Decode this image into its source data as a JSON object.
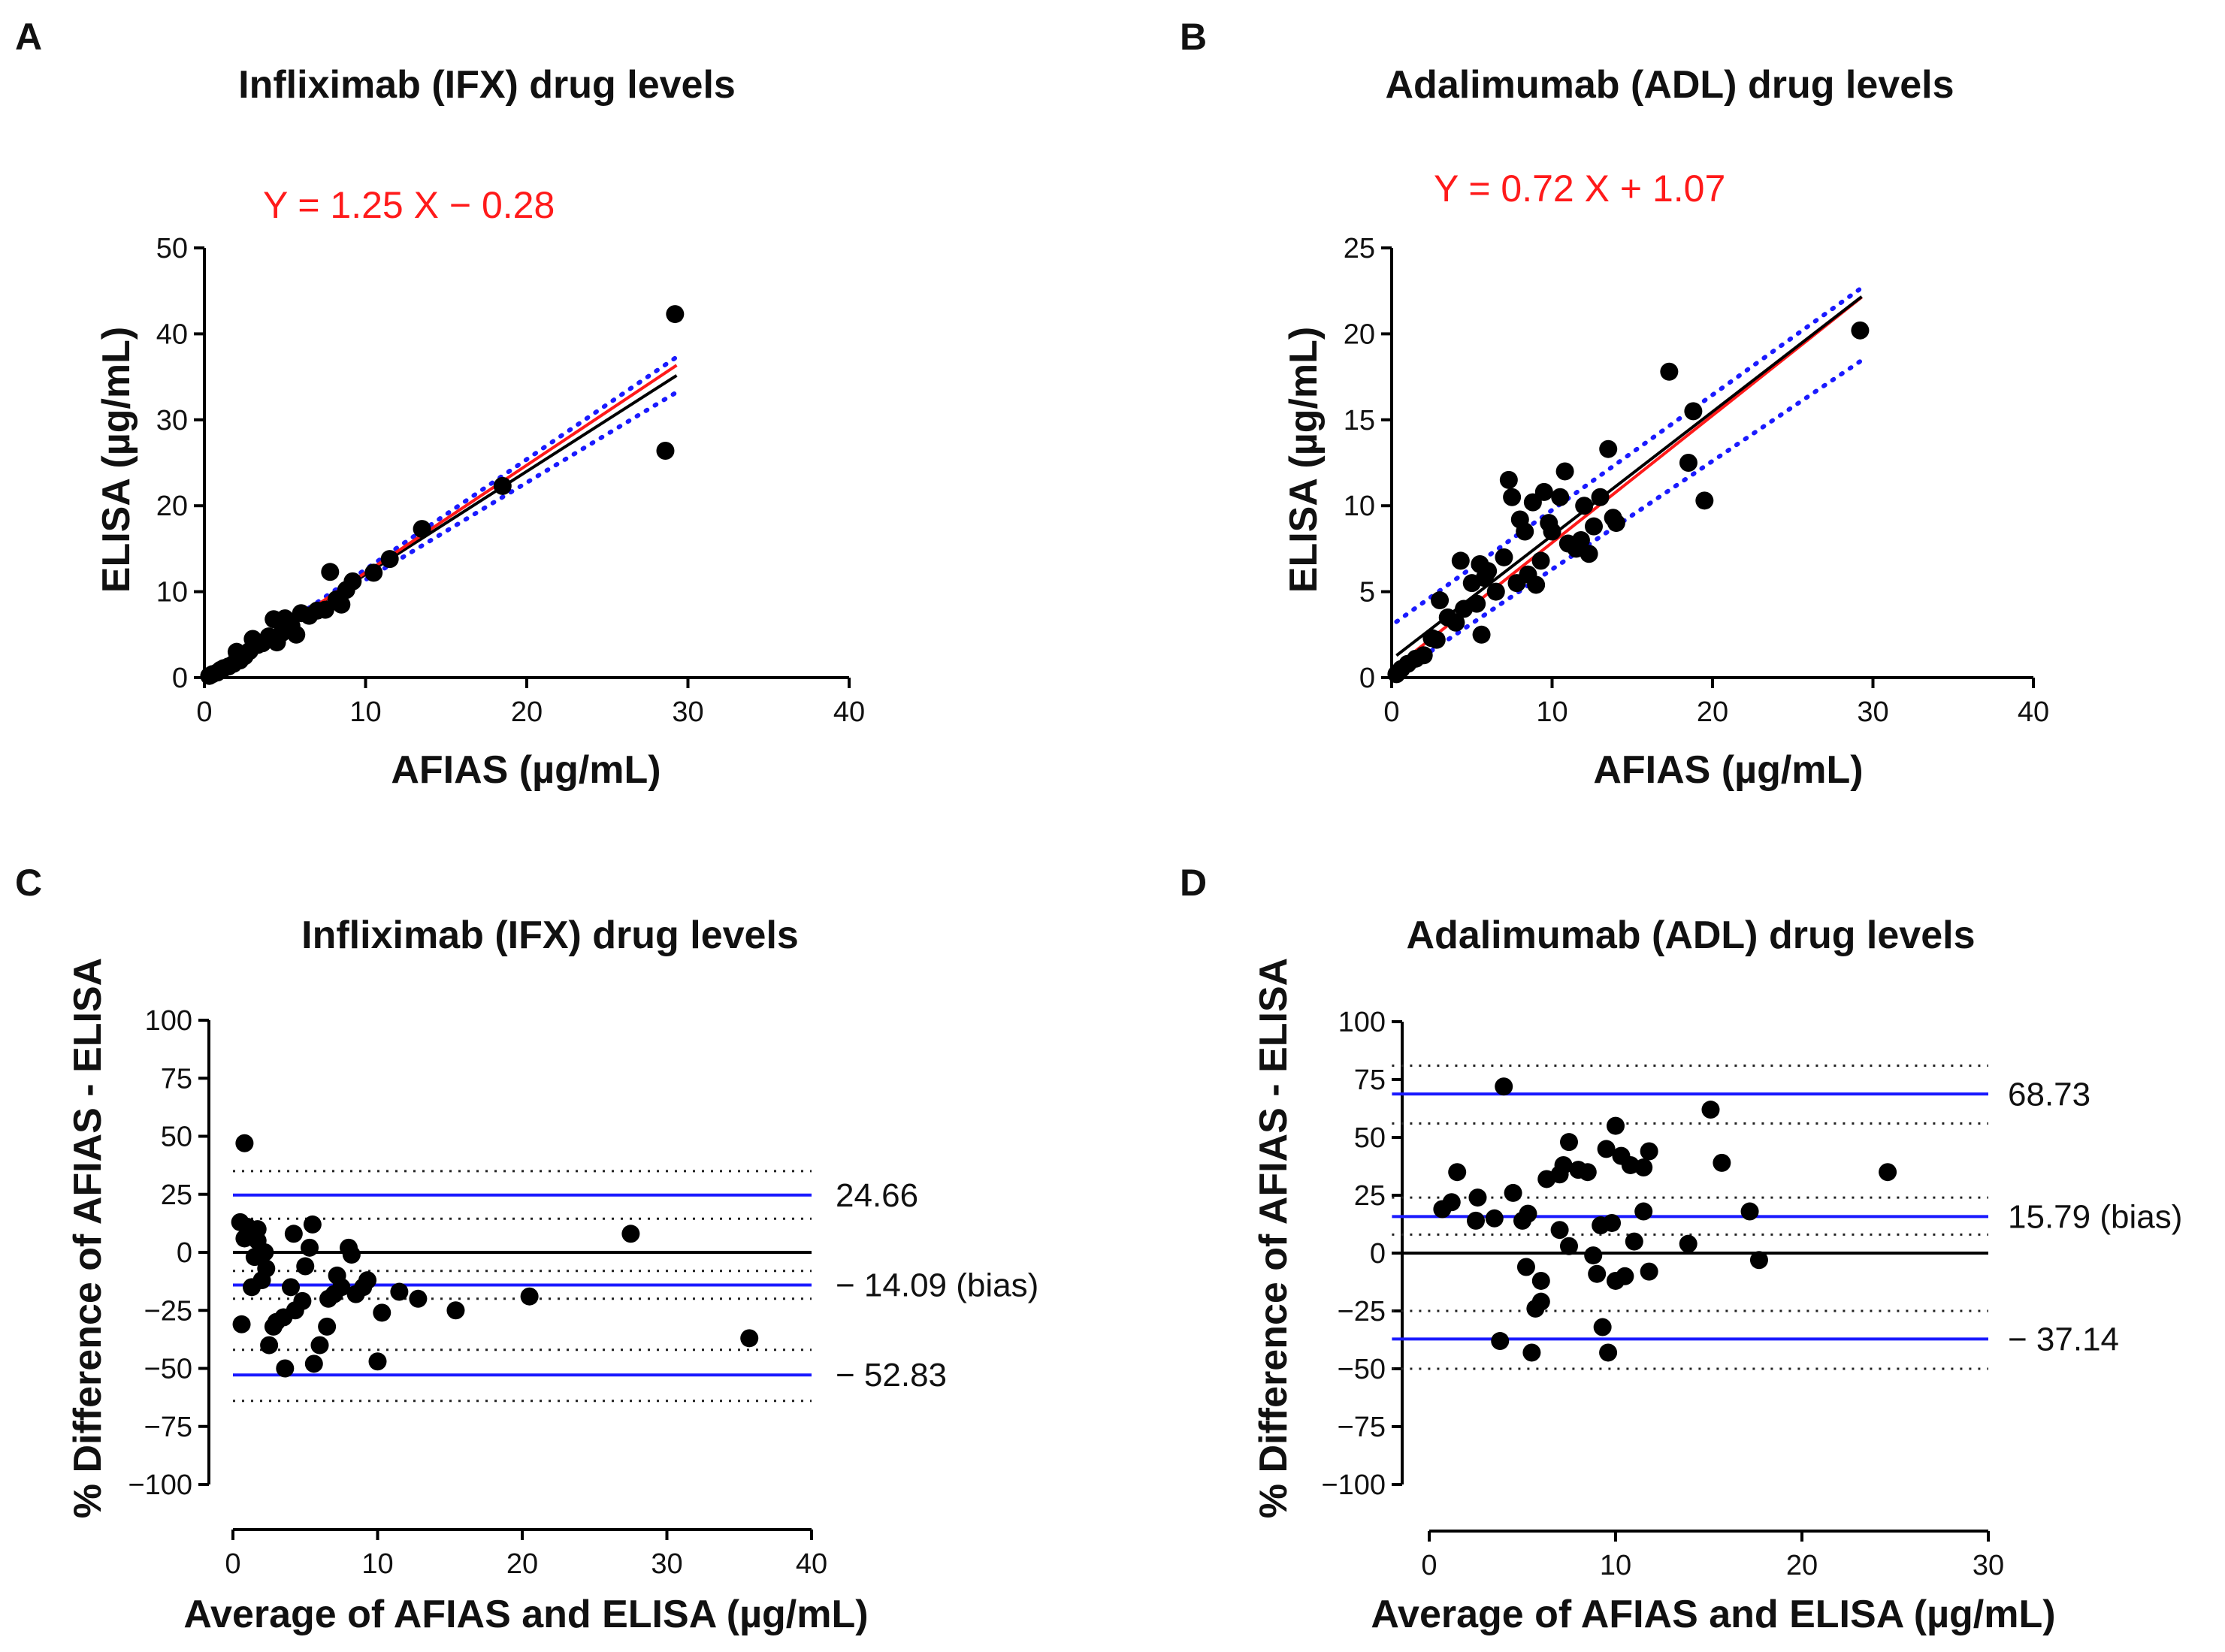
{
  "chart_data": [
    {
      "panel": "A",
      "type": "scatter",
      "title": "Infliximab (IFX) drug levels",
      "xlabel": "AFIAS (µg/mL)",
      "ylabel": "ELISA (µg/mL)",
      "xlim": [
        0,
        40
      ],
      "ylim": [
        0,
        50
      ],
      "xticks": [
        0,
        10,
        20,
        30,
        40
      ],
      "yticks": [
        0,
        10,
        20,
        30,
        40,
        50
      ],
      "equation": "Y = 1.25 X − 0.28",
      "regression_line": {
        "slope": 1.25,
        "intercept": -0.28,
        "color": "#ff1a1a"
      },
      "identity_line": {
        "slope": 1.2,
        "intercept": 0.0,
        "color": "#000000"
      },
      "confidence_band": {
        "lower": {
          "slope": 1.13,
          "intercept": 0.1
        },
        "upper": {
          "slope": 1.28,
          "intercept": -0.2
        },
        "color": "#1a1aff"
      },
      "x_range": [
        0,
        29.3
      ],
      "points": [
        [
          0.3,
          0.2
        ],
        [
          0.5,
          0.4
        ],
        [
          0.8,
          0.6
        ],
        [
          1.0,
          0.9
        ],
        [
          1.2,
          1.1
        ],
        [
          1.5,
          1.3
        ],
        [
          1.8,
          1.6
        ],
        [
          2.0,
          3.0
        ],
        [
          2.2,
          2.0
        ],
        [
          2.5,
          2.5
        ],
        [
          2.8,
          3.1
        ],
        [
          3.0,
          4.5
        ],
        [
          3.3,
          3.8
        ],
        [
          3.6,
          4.0
        ],
        [
          4.0,
          4.8
        ],
        [
          4.3,
          6.8
        ],
        [
          4.5,
          4.1
        ],
        [
          4.8,
          5.2
        ],
        [
          5.0,
          6.9
        ],
        [
          5.4,
          6.0
        ],
        [
          5.7,
          5.0
        ],
        [
          6.0,
          7.5
        ],
        [
          6.5,
          7.2
        ],
        [
          7.0,
          7.8
        ],
        [
          7.5,
          7.9
        ],
        [
          7.8,
          12.3
        ],
        [
          8.2,
          9.1
        ],
        [
          8.5,
          8.5
        ],
        [
          8.8,
          10.2
        ],
        [
          9.2,
          11.2
        ],
        [
          10.5,
          12.2
        ],
        [
          11.5,
          13.8
        ],
        [
          13.5,
          17.3
        ],
        [
          18.5,
          22.3
        ],
        [
          28.6,
          26.4
        ],
        [
          29.2,
          42.3
        ]
      ]
    },
    {
      "panel": "B",
      "type": "scatter",
      "title": "Adalimumab (ADL) drug levels",
      "xlabel": "AFIAS (µg/mL)",
      "ylabel": "ELISA (µg/mL)",
      "xlim": [
        0,
        40
      ],
      "ylim": [
        0,
        25
      ],
      "xticks": [
        0,
        10,
        20,
        30,
        40
      ],
      "yticks": [
        0,
        5,
        10,
        15,
        20,
        25
      ],
      "equation": "Y = 0.72 X + 1.07",
      "regression_line": {
        "slope": 0.72,
        "intercept": 1.07,
        "color": "#000000"
      },
      "identity_line": {
        "slope": 0.74,
        "intercept": 0.45,
        "color": "#ff1a1a"
      },
      "confidence_band": {
        "lower": {
          "slope": 0.63,
          "intercept": 0.0,
          "color": "#1a1aff"
        },
        "upper": {
          "slope": 0.67,
          "intercept": 3.05
        },
        "color": "#1a1aff"
      },
      "x_range": [
        0.3,
        29.3
      ],
      "points": [
        [
          0.3,
          0.2
        ],
        [
          0.6,
          0.5
        ],
        [
          1.0,
          0.8
        ],
        [
          1.5,
          1.1
        ],
        [
          2.0,
          1.3
        ],
        [
          2.5,
          2.3
        ],
        [
          2.8,
          2.2
        ],
        [
          3.0,
          4.5
        ],
        [
          3.5,
          3.5
        ],
        [
          4.0,
          3.2
        ],
        [
          4.3,
          6.8
        ],
        [
          4.5,
          4.0
        ],
        [
          5.0,
          5.5
        ],
        [
          5.3,
          4.3
        ],
        [
          5.5,
          6.6
        ],
        [
          5.8,
          5.8
        ],
        [
          5.6,
          2.5
        ],
        [
          6.0,
          6.2
        ],
        [
          6.5,
          5.0
        ],
        [
          7.0,
          7.0
        ],
        [
          7.3,
          11.5
        ],
        [
          7.5,
          10.5
        ],
        [
          7.8,
          5.5
        ],
        [
          8.0,
          9.2
        ],
        [
          8.3,
          8.5
        ],
        [
          8.5,
          6.0
        ],
        [
          8.8,
          10.2
        ],
        [
          9.0,
          5.4
        ],
        [
          9.3,
          6.8
        ],
        [
          9.5,
          10.8
        ],
        [
          9.8,
          9.0
        ],
        [
          10.0,
          8.5
        ],
        [
          10.5,
          10.5
        ],
        [
          10.8,
          12.0
        ],
        [
          11.0,
          7.8
        ],
        [
          11.5,
          7.5
        ],
        [
          11.8,
          8.0
        ],
        [
          12.0,
          10.0
        ],
        [
          12.3,
          7.2
        ],
        [
          12.6,
          8.8
        ],
        [
          13.0,
          10.5
        ],
        [
          13.5,
          13.3
        ],
        [
          13.8,
          9.3
        ],
        [
          14.0,
          9.0
        ],
        [
          17.3,
          17.8
        ],
        [
          18.5,
          12.5
        ],
        [
          18.8,
          15.5
        ],
        [
          19.5,
          10.3
        ],
        [
          29.2,
          20.2
        ]
      ]
    },
    {
      "panel": "C",
      "type": "scatter",
      "title": "Infliximab (IFX) drug levels",
      "xlabel": "Average of AFIAS and ELISA (µg/mL)",
      "ylabel": "% Difference of AFIAS - ELISA",
      "xlim": [
        0,
        40
      ],
      "ylim": [
        -100,
        100
      ],
      "xticks": [
        0,
        10,
        20,
        30,
        40
      ],
      "yticks": [
        -100,
        -75,
        -50,
        -25,
        0,
        25,
        50,
        75,
        100
      ],
      "ytick_labels": [
        "−100",
        "−75",
        "−50",
        "−25",
        "0",
        "25",
        "50",
        "75",
        "100"
      ],
      "zero_line": 0,
      "limit_lines": [
        {
          "y": 24.66,
          "label": "24.66",
          "color": "#1a1aff"
        },
        {
          "y": -14.09,
          "label": "− 14.09 (bias)",
          "color": "#1a1aff"
        },
        {
          "y": -52.83,
          "label": "− 52.83",
          "color": "#1a1aff"
        }
      ],
      "ci_lines": [
        35,
        14.5,
        -8,
        -20,
        -42,
        -64
      ],
      "line_x_range": [
        0,
        40
      ],
      "points": [
        [
          0.6,
          -31
        ],
        [
          0.8,
          47
        ],
        [
          0.5,
          13
        ],
        [
          1.0,
          11
        ],
        [
          0.8,
          6
        ],
        [
          1.3,
          -15
        ],
        [
          1.5,
          -2
        ],
        [
          1.7,
          10
        ],
        [
          1.7,
          5
        ],
        [
          2.0,
          -12
        ],
        [
          2.2,
          0
        ],
        [
          2.3,
          -7
        ],
        [
          2.5,
          -40
        ],
        [
          2.8,
          -32
        ],
        [
          3.0,
          -30
        ],
        [
          3.5,
          -28
        ],
        [
          3.6,
          -50
        ],
        [
          4.0,
          -15
        ],
        [
          4.2,
          8
        ],
        [
          4.3,
          -25
        ],
        [
          4.8,
          -21
        ],
        [
          5.0,
          -6
        ],
        [
          5.3,
          2
        ],
        [
          5.5,
          12
        ],
        [
          5.6,
          -48
        ],
        [
          6.0,
          -40
        ],
        [
          6.5,
          -32
        ],
        [
          6.6,
          -20
        ],
        [
          7.0,
          -18
        ],
        [
          7.2,
          -10
        ],
        [
          7.5,
          -15
        ],
        [
          8.0,
          2
        ],
        [
          8.2,
          -1
        ],
        [
          8.5,
          -18
        ],
        [
          9.0,
          -15
        ],
        [
          9.3,
          -12
        ],
        [
          10.0,
          -47
        ],
        [
          10.3,
          -26
        ],
        [
          11.5,
          -17
        ],
        [
          12.8,
          -20
        ],
        [
          15.4,
          -25
        ],
        [
          20.5,
          -19
        ],
        [
          27.5,
          8
        ],
        [
          35.7,
          -37
        ]
      ]
    },
    {
      "panel": "D",
      "type": "scatter",
      "title": "Adalimumab (ADL) drug levels",
      "xlabel": "Average of AFIAS and ELISA (µg/mL)",
      "ylabel": "% Difference of AFIAS - ELISA",
      "xlim": [
        0,
        30
      ],
      "ylim": [
        -100,
        100
      ],
      "xticks": [
        0,
        10,
        20,
        30
      ],
      "yticks": [
        -100,
        -75,
        -50,
        -25,
        0,
        25,
        50,
        75,
        100
      ],
      "ytick_labels": [
        "−100",
        "−75",
        "−50",
        "−25",
        "0",
        "25",
        "50",
        "75",
        "100"
      ],
      "zero_line": 0,
      "limit_lines": [
        {
          "y": 68.73,
          "label": "68.73",
          "color": "#1a1aff"
        },
        {
          "y": 15.79,
          "label": "15.79  (bias)",
          "color": "#1a1aff"
        },
        {
          "y": -37.14,
          "label": "− 37.14",
          "color": "#1a1aff"
        }
      ],
      "ci_lines": [
        81,
        56,
        24,
        8,
        -25,
        -50
      ],
      "line_x_range": [
        -2,
        30
      ],
      "points": [
        [
          0.7,
          19
        ],
        [
          1.2,
          22
        ],
        [
          1.5,
          35
        ],
        [
          2.5,
          14
        ],
        [
          2.6,
          24
        ],
        [
          3.5,
          15
        ],
        [
          3.8,
          -38
        ],
        [
          4.0,
          72
        ],
        [
          4.5,
          26
        ],
        [
          5.0,
          14
        ],
        [
          5.2,
          -6
        ],
        [
          5.3,
          17
        ],
        [
          5.5,
          -43
        ],
        [
          5.7,
          -24
        ],
        [
          6.0,
          -21
        ],
        [
          6.3,
          32
        ],
        [
          6.0,
          -12
        ],
        [
          7.0,
          34
        ],
        [
          7.0,
          10
        ],
        [
          7.2,
          38
        ],
        [
          7.5,
          3
        ],
        [
          7.5,
          48
        ],
        [
          8.0,
          36
        ],
        [
          8.5,
          35
        ],
        [
          8.8,
          -1
        ],
        [
          9.0,
          -9
        ],
        [
          9.2,
          12
        ],
        [
          9.3,
          -32
        ],
        [
          9.5,
          45
        ],
        [
          9.6,
          -43
        ],
        [
          9.8,
          13
        ],
        [
          10.0,
          55
        ],
        [
          10.0,
          -12
        ],
        [
          10.3,
          42
        ],
        [
          10.5,
          -10
        ],
        [
          10.8,
          38
        ],
        [
          11.0,
          5
        ],
        [
          11.5,
          18
        ],
        [
          11.5,
          37
        ],
        [
          11.8,
          44
        ],
        [
          11.8,
          -8
        ],
        [
          13.9,
          4
        ],
        [
          15.1,
          62
        ],
        [
          15.7,
          39
        ],
        [
          17.2,
          18
        ],
        [
          17.7,
          -3
        ],
        [
          24.6,
          35
        ]
      ]
    }
  ]
}
